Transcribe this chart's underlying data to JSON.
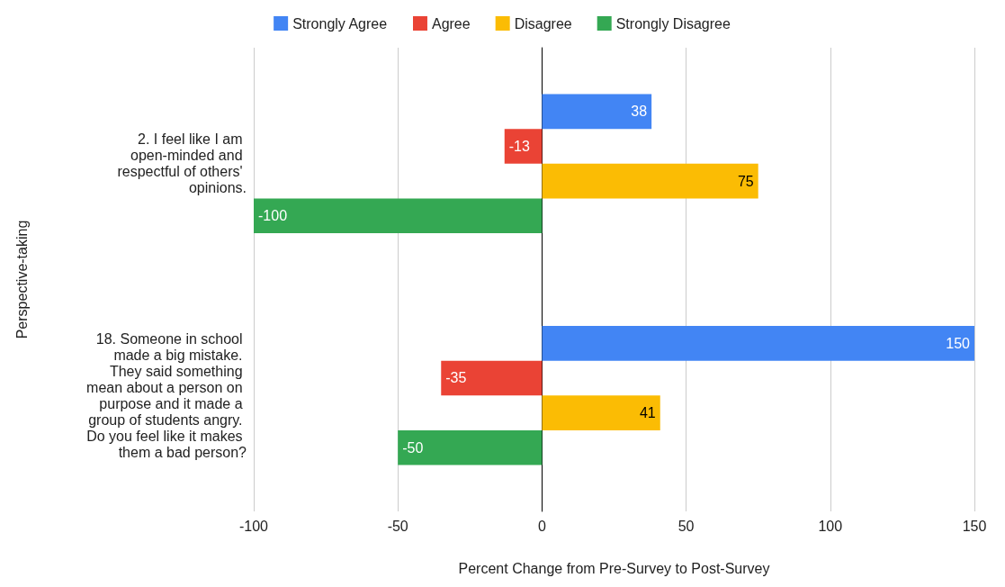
{
  "chart_data": {
    "type": "bar",
    "orientation": "horizontal",
    "categories": [
      "2. I feel like I am open-minded and respectful of others' opinions.",
      "18. Someone in school made a big mistake. They said something mean about a person on purpose and it made a group of students angry. Do you feel like it makes them a bad person?"
    ],
    "series": [
      {
        "name": "Strongly Agree",
        "color": "#4285f4",
        "values": [
          38,
          150
        ]
      },
      {
        "name": "Agree",
        "color": "#ea4335",
        "values": [
          -13,
          -35
        ]
      },
      {
        "name": "Disagree",
        "color": "#fbbc04",
        "values": [
          75,
          41
        ]
      },
      {
        "name": "Strongly Disagree",
        "color": "#34a853",
        "values": [
          -100,
          -50
        ]
      }
    ],
    "xlim": [
      -100,
      150
    ],
    "xticks": [
      -100,
      -50,
      0,
      50,
      100,
      150
    ],
    "xlabel": "Percent Change from Pre-Survey to Post-Survey",
    "ylabel": "Perspective-taking",
    "grid": "x",
    "legend": "top",
    "data_labels": true
  }
}
